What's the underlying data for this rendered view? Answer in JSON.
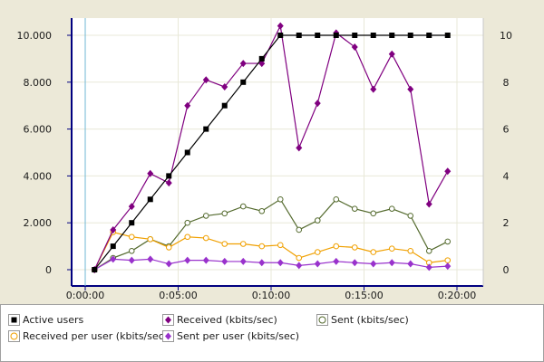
{
  "chart_data": {
    "type": "line",
    "x": [
      "0:00:30",
      "0:01:30",
      "0:02:30",
      "0:03:30",
      "0:04:30",
      "0:05:30",
      "0:06:30",
      "0:07:30",
      "0:08:30",
      "0:09:30",
      "0:10:30",
      "0:11:30",
      "0:12:30",
      "0:13:30",
      "0:14:30",
      "0:15:30",
      "0:16:30",
      "0:17:30",
      "0:18:30",
      "0:19:30"
    ],
    "x_ticks": [
      "0:00:00",
      "0:05:00",
      "0:10:00",
      "0:15:00",
      "0:20:00"
    ],
    "xlim": [
      "0:00:00",
      "0:20:00"
    ],
    "y_left_ticks": [
      "0",
      "2.000",
      "4.000",
      "6.000",
      "8.000",
      "10.000"
    ],
    "y_left_lim": [
      0,
      11000
    ],
    "y_right_ticks": [
      "0",
      "2",
      "4",
      "6",
      "8",
      "10"
    ],
    "y_right_lim": [
      0,
      11
    ],
    "grid": true,
    "legend_position": "bottom",
    "series": [
      {
        "name": "Active users",
        "axis": "right",
        "color": "#000000",
        "marker": "square-filled",
        "values": [
          0,
          1,
          2,
          3,
          4,
          5,
          6,
          7,
          8,
          9,
          10,
          10,
          10,
          10,
          10,
          10,
          10,
          10,
          10,
          10
        ]
      },
      {
        "name": "Received (kbits/sec)",
        "axis": "left",
        "color": "#800080",
        "marker": "diamond-filled",
        "values": [
          0,
          1700,
          2700,
          4100,
          3700,
          7000,
          8100,
          7800,
          8800,
          8800,
          10400,
          5200,
          7100,
          10100,
          9500,
          7700,
          9200,
          7700,
          2800,
          4200
        ]
      },
      {
        "name": "Sent (kbits/sec)",
        "axis": "left",
        "color": "#556b2f",
        "marker": "circle-open",
        "values": [
          0,
          500,
          800,
          1300,
          1000,
          2000,
          2300,
          2400,
          2700,
          2500,
          3000,
          1700,
          2100,
          3000,
          2600,
          2400,
          2600,
          2300,
          800,
          1200
        ]
      },
      {
        "name": "Received per user (kbits/sec)",
        "axis": "left",
        "color": "#f0a000",
        "marker": "circle-open",
        "values": [
          0,
          1600,
          1400,
          1300,
          950,
          1400,
          1350,
          1100,
          1100,
          1000,
          1050,
          500,
          750,
          1000,
          950,
          750,
          900,
          800,
          300,
          400
        ]
      },
      {
        "name": "Sent per user (kbits/sec)",
        "axis": "left",
        "color": "#9932cc",
        "marker": "diamond-filled",
        "values": [
          0,
          450,
          400,
          450,
          250,
          400,
          400,
          350,
          350,
          300,
          300,
          180,
          250,
          350,
          300,
          250,
          300,
          250,
          100,
          150
        ]
      }
    ]
  },
  "legend": {
    "items": [
      {
        "label": "Active users",
        "color": "#000000",
        "icon": "square-filled-icon"
      },
      {
        "label": "Received (kbits/sec)",
        "color": "#800080",
        "icon": "diamond-filled-icon"
      },
      {
        "label": "Sent (kbits/sec)",
        "color": "#556b2f",
        "icon": "circle-open-icon"
      },
      {
        "label": "Received per user (kbits/sec)",
        "color": "#f0a000",
        "icon": "circle-open-icon"
      },
      {
        "label": "Sent per user (kbits/sec)",
        "color": "#9932cc",
        "icon": "diamond-filled-icon"
      }
    ]
  }
}
